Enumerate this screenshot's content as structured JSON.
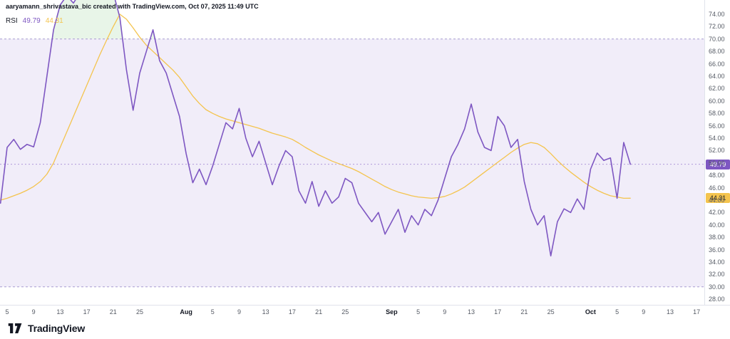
{
  "attribution": "aaryamann_shrivastava_bic created with TradingView.com, Oct 07, 2025 11:49 UTC",
  "legend": {
    "indicator": "RSI",
    "value_main": "49.79",
    "value_ma": "44.31"
  },
  "footer": {
    "brand": "TradingView"
  },
  "colors": {
    "band_fill": "#F1EDF9",
    "band_line": "#A79CD1",
    "overbought_fill": "rgba(76,175,80,0.13)",
    "axis_text": "#555A64",
    "separator": "#E0E3EB",
    "badge_text_on_rsi": "#FFFFFF",
    "badge_text_on_ma": "#131722",
    "brand_dark": "#131722"
  },
  "chart_data": {
    "type": "line",
    "title": "RSI indicator pane",
    "legend_position": "top-left",
    "grid": false,
    "ylim": [
      28,
      74
    ],
    "y_ticks": [
      74,
      72,
      70,
      68,
      66,
      64,
      62,
      60,
      58,
      56,
      54,
      52,
      50,
      48,
      46,
      44,
      42,
      40,
      38,
      36,
      34,
      32,
      30,
      28
    ],
    "bands": {
      "overbought": 70,
      "oversold": 30
    },
    "x_ticks": [
      {
        "label": "5",
        "day": 2
      },
      {
        "label": "9",
        "day": 6
      },
      {
        "label": "13",
        "day": 10
      },
      {
        "label": "17",
        "day": 14
      },
      {
        "label": "21",
        "day": 18
      },
      {
        "label": "25",
        "day": 22
      },
      {
        "label": "Aug",
        "day": 29
      },
      {
        "label": "5",
        "day": 33
      },
      {
        "label": "9",
        "day": 37
      },
      {
        "label": "13",
        "day": 41
      },
      {
        "label": "17",
        "day": 45
      },
      {
        "label": "21",
        "day": 49
      },
      {
        "label": "25",
        "day": 53
      },
      {
        "label": "Sep",
        "day": 60
      },
      {
        "label": "5",
        "day": 64
      },
      {
        "label": "9",
        "day": 68
      },
      {
        "label": "13",
        "day": 72
      },
      {
        "label": "17",
        "day": 76
      },
      {
        "label": "21",
        "day": 80
      },
      {
        "label": "25",
        "day": 84
      },
      {
        "label": "Oct",
        "day": 90
      },
      {
        "label": "5",
        "day": 94
      },
      {
        "label": "9",
        "day": 98
      },
      {
        "label": "13",
        "day": 102
      },
      {
        "label": "17",
        "day": 106
      }
    ],
    "series": [
      {
        "name": "RSI",
        "color": "#7E57C2",
        "width": 1.6,
        "day_start": 1,
        "values": [
          43.5,
          52.5,
          53.8,
          52.2,
          53.0,
          52.6,
          56.5,
          64.0,
          71.5,
          75.5,
          77.0,
          75.8,
          77.5,
          78.5,
          77.0,
          78.0,
          79.0,
          77.5,
          73.5,
          65.0,
          58.5,
          64.5,
          68.0,
          71.5,
          66.5,
          64.5,
          61.0,
          57.5,
          51.5,
          46.8,
          49.0,
          46.5,
          49.5,
          53.0,
          56.5,
          55.5,
          58.8,
          54.0,
          51.0,
          53.5,
          50.0,
          46.5,
          49.5,
          52.0,
          51.0,
          45.5,
          43.5,
          47.0,
          43.0,
          45.5,
          43.5,
          44.5,
          47.5,
          46.8,
          43.5,
          42.0,
          40.5,
          42.0,
          38.5,
          40.5,
          42.5,
          38.8,
          41.5,
          40.0,
          42.5,
          41.5,
          44.0,
          47.5,
          51.0,
          53.0,
          55.5,
          59.5,
          55.0,
          52.5,
          52.0,
          57.5,
          56.0,
          52.5,
          53.8,
          47.0,
          42.5,
          40.0,
          41.5,
          35.0,
          40.5,
          42.6,
          42.0,
          44.2,
          42.5,
          49.0,
          51.6,
          50.4,
          50.8,
          44.3,
          53.3,
          49.79
        ]
      },
      {
        "name": "RSI-based MA",
        "color": "#F4C44E",
        "width": 1.3,
        "day_start": 1,
        "values": [
          44.0,
          44.3,
          44.7,
          45.1,
          45.6,
          46.2,
          47.0,
          48.2,
          50.0,
          52.5,
          55.0,
          57.5,
          60.0,
          62.5,
          65.0,
          67.5,
          69.8,
          72.0,
          74.0,
          73.2,
          71.8,
          70.3,
          69.0,
          68.0,
          67.0,
          66.0,
          65.0,
          63.8,
          62.3,
          60.8,
          59.6,
          58.6,
          58.0,
          57.5,
          57.1,
          56.8,
          56.5,
          56.2,
          55.9,
          55.6,
          55.2,
          54.8,
          54.5,
          54.2,
          53.8,
          53.2,
          52.5,
          51.9,
          51.3,
          50.8,
          50.3,
          49.9,
          49.5,
          49.1,
          48.6,
          48.0,
          47.4,
          46.8,
          46.2,
          45.7,
          45.3,
          45.0,
          44.7,
          44.5,
          44.4,
          44.3,
          44.4,
          44.6,
          45.0,
          45.5,
          46.1,
          46.9,
          47.7,
          48.5,
          49.3,
          50.1,
          50.9,
          51.7,
          52.4,
          53.0,
          53.3,
          53.1,
          52.5,
          51.5,
          50.4,
          49.4,
          48.5,
          47.7,
          46.9,
          46.2,
          45.6,
          45.1,
          44.7,
          44.5,
          44.3,
          44.31
        ]
      }
    ],
    "last_values": {
      "RSI": 49.79,
      "MA": 44.31
    }
  }
}
